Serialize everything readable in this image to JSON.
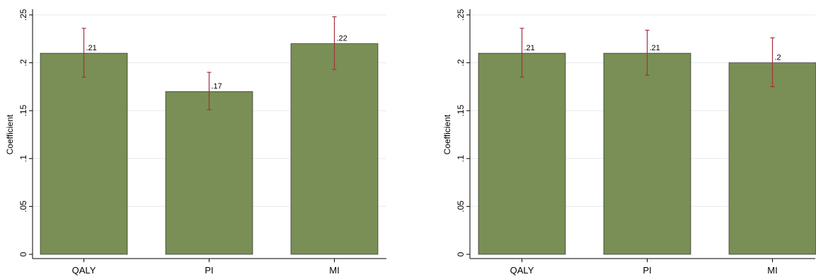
{
  "chart_data": [
    {
      "type": "bar",
      "categories": [
        "QALY",
        "PI",
        "MI"
      ],
      "values": [
        0.21,
        0.17,
        0.22
      ],
      "value_labels": [
        ".21",
        ".17",
        ".22"
      ],
      "ci_low": [
        0.185,
        0.151,
        0.193
      ],
      "ci_high": [
        0.236,
        0.19,
        0.248
      ],
      "ylabel": "Coefficient",
      "ylim": [
        0,
        0.25
      ],
      "yticks": [
        0,
        0.05,
        0.1,
        0.15,
        0.2,
        0.25
      ],
      "ytick_labels": [
        "0",
        ".05",
        ".1",
        ".15",
        ".2",
        ".25"
      ],
      "grid": true,
      "bar_color": "#798f55",
      "error_color": "#a2323c"
    },
    {
      "type": "bar",
      "categories": [
        "QALY",
        "PI",
        "MI"
      ],
      "values": [
        0.21,
        0.21,
        0.2
      ],
      "value_labels": [
        ".21",
        ".21",
        ".2"
      ],
      "ci_low": [
        0.185,
        0.187,
        0.175
      ],
      "ci_high": [
        0.236,
        0.234,
        0.226
      ],
      "ylabel": "Coefficient",
      "ylim": [
        0,
        0.25
      ],
      "yticks": [
        0,
        0.05,
        0.1,
        0.15,
        0.2,
        0.25
      ],
      "ytick_labels": [
        "0",
        ".05",
        ".1",
        ".15",
        ".2",
        ".25"
      ],
      "grid": true,
      "bar_color": "#798f55",
      "error_color": "#a2323c"
    }
  ]
}
